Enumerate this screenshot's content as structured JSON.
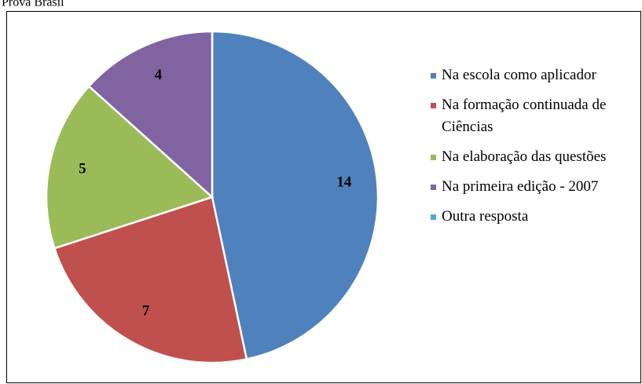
{
  "chart_data": {
    "type": "pie",
    "title": "Prova Brasil",
    "categories": [
      "Na escola como aplicador",
      "Na formação continuada de Ciências",
      "Na elaboração das questões",
      "Na primeira edição - 2007",
      "Outra resposta"
    ],
    "values": [
      14,
      7,
      5,
      4,
      0
    ],
    "colors": [
      "#4f81bd",
      "#c0504d",
      "#9bbb59",
      "#8064a2",
      "#4bacc6"
    ],
    "legend": "right"
  }
}
